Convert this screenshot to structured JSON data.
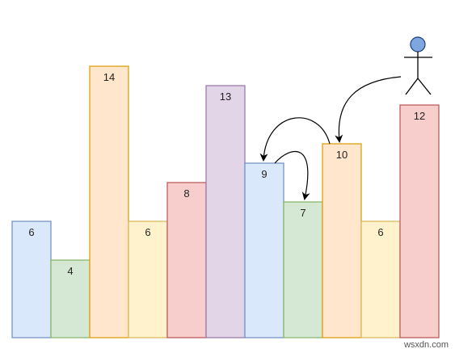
{
  "bars": [
    {
      "value": 6,
      "fill": "#dae8fc",
      "stroke": "#6c8ebf"
    },
    {
      "value": 4,
      "fill": "#d5e8d4",
      "stroke": "#82b366"
    },
    {
      "value": 14,
      "fill": "#ffe6cc",
      "stroke": "#d79b00"
    },
    {
      "value": 6,
      "fill": "#fff2cc",
      "stroke": "#d6b656"
    },
    {
      "value": 8,
      "fill": "#f8cecc",
      "stroke": "#b85450"
    },
    {
      "value": 13,
      "fill": "#e1d5e7",
      "stroke": "#9673a6"
    },
    {
      "value": 9,
      "fill": "#dae8fc",
      "stroke": "#6c8ebf"
    },
    {
      "value": 7,
      "fill": "#d5e8d4",
      "stroke": "#82b366"
    },
    {
      "value": 10,
      "fill": "#ffe6cc",
      "stroke": "#d79b00"
    },
    {
      "value": 6,
      "fill": "#fff2cc",
      "stroke": "#d6b656"
    },
    {
      "value": 12,
      "fill": "#f8cecc",
      "stroke": "#b85450"
    }
  ],
  "person": {
    "icon": "stick-figure-icon",
    "head_fill": "#7ea6e0",
    "head_stroke": "#1a3d7a"
  },
  "watermark": "wsxdn.com"
}
